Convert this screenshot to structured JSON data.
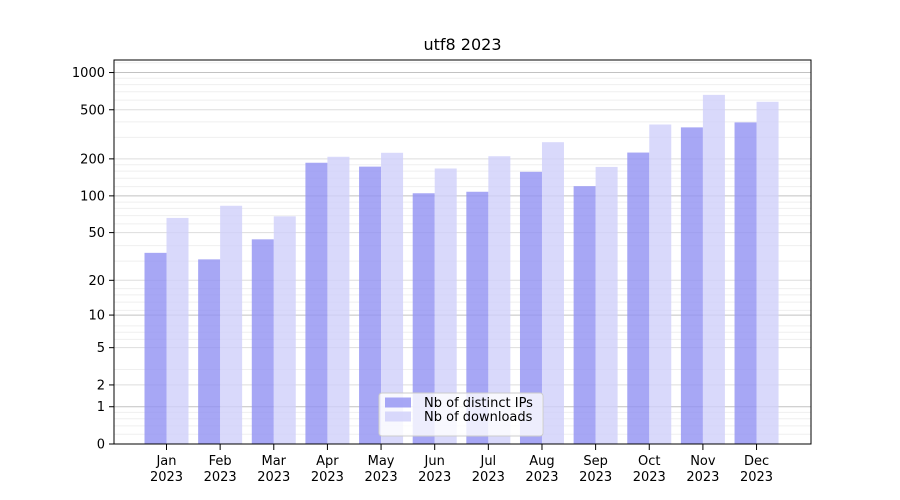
{
  "chart_data": {
    "type": "bar",
    "title": "utf8 2023",
    "categories": [
      "Jan",
      "Feb",
      "Mar",
      "Apr",
      "May",
      "Jun",
      "Jul",
      "Aug",
      "Sep",
      "Oct",
      "Nov",
      "Dec"
    ],
    "x_tick_year": "2023",
    "series": [
      {
        "name": "Nb of distinct IPs",
        "color": "rgba(145,145,243,0.8)",
        "values": [
          34,
          30,
          44,
          186,
          173,
          105,
          108,
          157,
          120,
          225,
          360,
          395
        ]
      },
      {
        "name": "Nb of downloads",
        "color": "rgba(208,208,250,0.8)",
        "values": [
          66,
          83,
          68,
          208,
          224,
          167,
          210,
          273,
          172,
          380,
          660,
          580
        ]
      }
    ],
    "y_axis": {
      "scale": "log10(1+v)",
      "tick_values": [
        0,
        1,
        2,
        5,
        10,
        20,
        50,
        100,
        200,
        500,
        1000
      ],
      "tick_labels": [
        "0",
        "1",
        "2",
        "5",
        "10",
        "20",
        "50",
        "100",
        "200",
        "500",
        "1000"
      ],
      "ylim": [
        0,
        1265
      ]
    },
    "legend": {
      "position": "lower center",
      "labels": [
        "Nb of distinct IPs",
        "Nb of downloads"
      ]
    },
    "grid": "major and minor horizontal gridlines",
    "colors": {
      "bar_distinct_ips": "rgba(145,145,243,0.8)",
      "bar_downloads": "rgba(208,208,250,0.8)",
      "grid_major": "#c2c2c2",
      "grid_mid": "#dddddd",
      "grid_minor": "#efefef",
      "spine": "#000000",
      "legend_border": "#cccccc"
    }
  }
}
